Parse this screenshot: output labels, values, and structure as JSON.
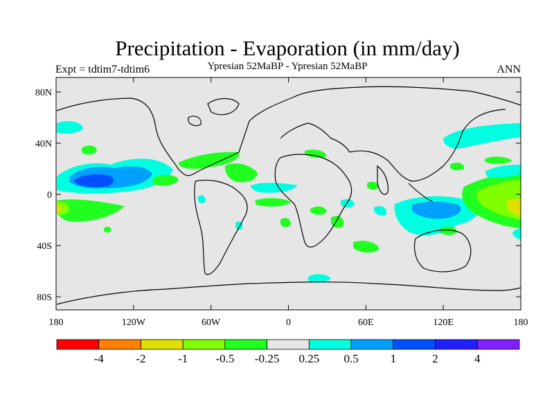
{
  "title": "Precipitation - Evaporation (in mm/day)",
  "left_label": "Expt = tdtim7-tdtim6",
  "center_label": "Ypresian  52MaBP - Ypresian  52MaBP",
  "right_label": "ANN",
  "lat_ticks": [
    {
      "label": "80N",
      "lat": 80
    },
    {
      "label": "40N",
      "lat": 40
    },
    {
      "label": "0",
      "lat": 0
    },
    {
      "label": "40S",
      "lat": -40
    },
    {
      "label": "80S",
      "lat": -80
    }
  ],
  "lon_ticks": [
    {
      "label": "180",
      "lon": -180
    },
    {
      "label": "120W",
      "lon": -120
    },
    {
      "label": "60W",
      "lon": -60
    },
    {
      "label": "0",
      "lon": 0
    },
    {
      "label": "60E",
      "lon": 60
    },
    {
      "label": "120E",
      "lon": 120
    },
    {
      "label": "180",
      "lon": 180
    }
  ],
  "colorbar": {
    "colors": [
      "#ff0000",
      "#ff7f00",
      "#e0e000",
      "#80ff00",
      "#20ff20",
      "#e6e6e6",
      "#00ffe0",
      "#00a0ff",
      "#0050ff",
      "#2020ff",
      "#8020ff"
    ],
    "labels": [
      "-4",
      "-2",
      "-1",
      "-0.5",
      "-0.25",
      "0.25",
      "0.5",
      "1",
      "2",
      "4"
    ]
  },
  "colors": {
    "background_fill": "#e6e6e6",
    "green_light": "#80ff00",
    "green": "#20ff20",
    "cyan": "#00ffe0",
    "light_blue": "#00a0ff",
    "blue": "#0050ff",
    "yellow": "#e0e000"
  }
}
